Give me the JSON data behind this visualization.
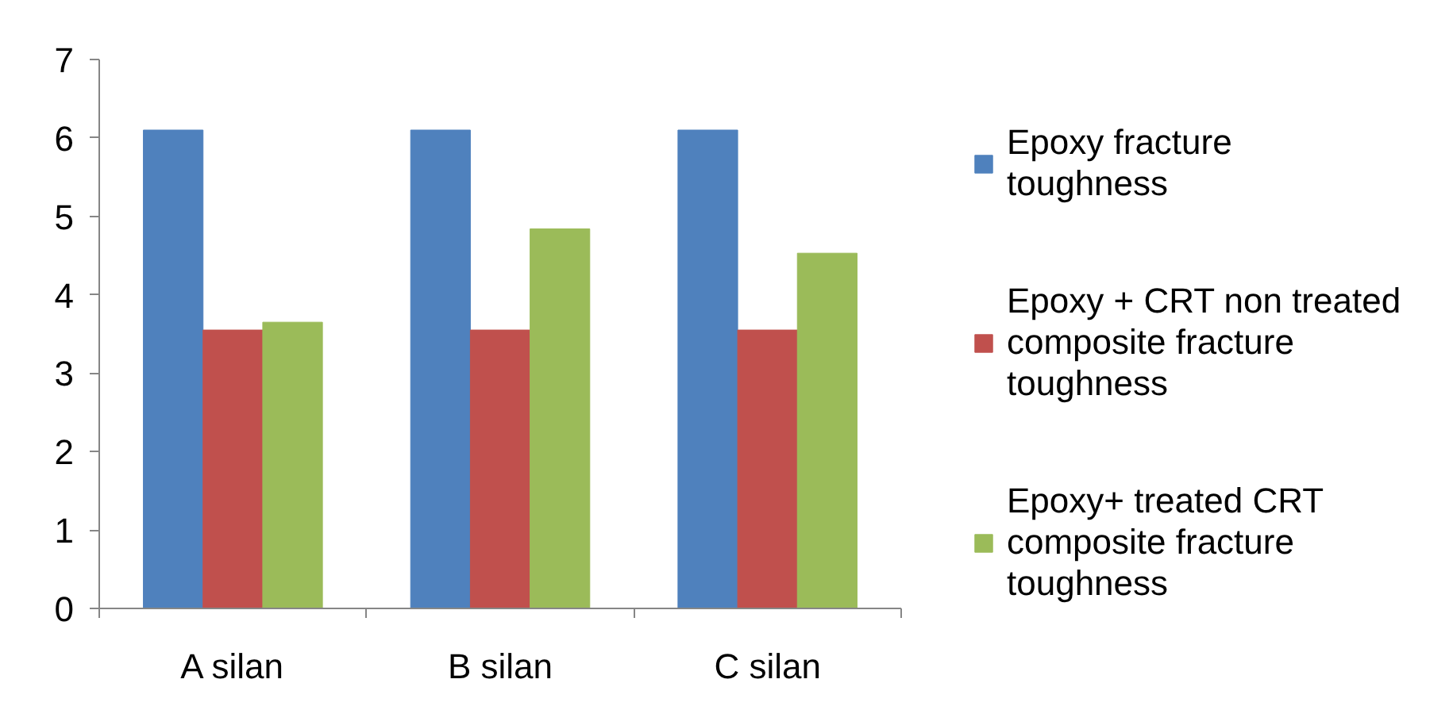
{
  "chart_data": {
    "type": "bar",
    "categories": [
      "A silan",
      "B silan",
      "C silan"
    ],
    "series": [
      {
        "name": "Epoxy fracture toughness",
        "color": "#4f81bd",
        "values": [
          6.1,
          6.1,
          6.1
        ]
      },
      {
        "name": "Epoxy + CRT non treated composite fracture toughness",
        "color": "#c0504d",
        "values": [
          3.55,
          3.55,
          3.55
        ]
      },
      {
        "name": "Epoxy+ treated CRT composite fracture toughness",
        "color": "#9bbb59",
        "values": [
          3.65,
          4.84,
          4.53
        ]
      }
    ],
    "ylim": [
      0,
      7
    ],
    "yticks": [
      0,
      1,
      2,
      3,
      4,
      5,
      6,
      7
    ],
    "grid": false,
    "legend": "right"
  }
}
